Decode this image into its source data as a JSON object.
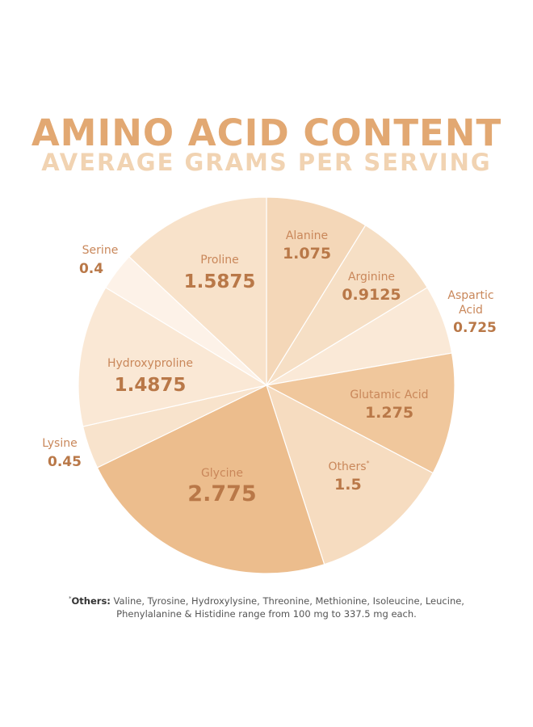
{
  "header": {
    "title": "AMINO ACID CONTENT",
    "subtitle": "AVERAGE GRAMS PER SERVING"
  },
  "chart_data": {
    "type": "pie",
    "title": "AMINO ACID CONTENT",
    "subtitle": "AVERAGE GRAMS PER SERVING",
    "slices": [
      {
        "label": "Alanine",
        "value": 1.075,
        "value_text": "1.075",
        "color": "#f4d7b8"
      },
      {
        "label": "Arginine",
        "value": 0.9125,
        "value_text": "0.9125",
        "color": "#f6dfc5"
      },
      {
        "label": "Aspartic Acid",
        "value": 0.725,
        "value_text": "0.725",
        "color": "#fae9d7"
      },
      {
        "label": "Glutamic Acid",
        "value": 1.275,
        "value_text": "1.275",
        "color": "#f0c79c"
      },
      {
        "label": "Others",
        "value": 1.5,
        "value_text": "1.5",
        "color": "#f6dcc0"
      },
      {
        "label": "Glycine",
        "value": 2.775,
        "value_text": "2.775",
        "color": "#ecbd8d"
      },
      {
        "label": "Lysine",
        "value": 0.45,
        "value_text": "0.45",
        "color": "#f8e3cc"
      },
      {
        "label": "Hydroxyproline",
        "value": 1.4875,
        "value_text": "1.4875",
        "color": "#fae8d5"
      },
      {
        "label": "Serine",
        "value": 0.4,
        "value_text": "0.4",
        "color": "#fdf2e8"
      },
      {
        "label": "Proline",
        "value": 1.5875,
        "value_text": "1.5875",
        "color": "#f8e2ca"
      }
    ],
    "start_angle_deg": 0,
    "direction": "clockwise"
  },
  "footnote": {
    "marker": "*",
    "lead": "Others:",
    "text": " Valine, Tyrosine, Hydroxylysine, Threonine, Methionine, Isoleucine, Leucine, Phenylalanine & Histidine range from 100 mg to 337.5 mg each."
  },
  "colors": {
    "title": "#e2a872",
    "subtitle": "#f1d3b2",
    "slice_label": "#c9875a",
    "slice_value": "#b97848",
    "separator": "#ffffff"
  }
}
